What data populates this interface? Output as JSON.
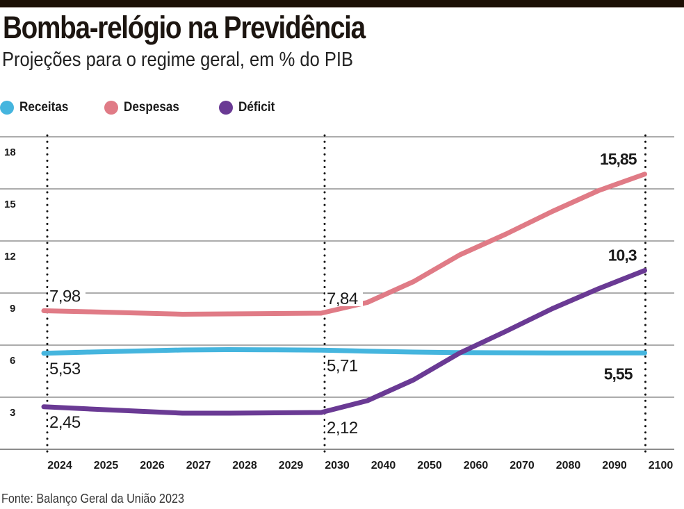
{
  "header": {
    "title": "Bomba-relógio na Previdência",
    "subtitle": "Projeções para o regime geral, em % do PIB"
  },
  "legend": [
    {
      "label": "Receitas",
      "color": "#45b5de"
    },
    {
      "label": "Despesas",
      "color": "#e07b86"
    },
    {
      "label": "Déficit",
      "color": "#6a3a94"
    }
  ],
  "source": "Fonte: Balanço Geral da União 2023",
  "chart_data": {
    "type": "line",
    "title": "Bomba-relógio na Previdência",
    "subtitle": "Projeções para o regime geral, em % do PIB",
    "xlabel": "",
    "ylabel": "% do PIB",
    "categories": [
      "2024",
      "2025",
      "2026",
      "2027",
      "2028",
      "2029",
      "2030",
      "2040",
      "2050",
      "2060",
      "2070",
      "2080",
      "2090",
      "2100"
    ],
    "ylim": [
      0,
      18
    ],
    "yticks": [
      "3",
      "6",
      "9",
      "12",
      "15",
      "18"
    ],
    "ytick_values": [
      3,
      6,
      9,
      12,
      15,
      18
    ],
    "grid": true,
    "legend_position": "top-left",
    "highlight_categories": [
      "2024",
      "2030",
      "2100"
    ],
    "series": [
      {
        "name": "Receitas",
        "color": "#45b5de",
        "values": [
          5.53,
          5.6,
          5.66,
          5.72,
          5.74,
          5.73,
          5.71,
          5.65,
          5.6,
          5.57,
          5.56,
          5.55,
          5.55,
          5.55
        ]
      },
      {
        "name": "Despesas",
        "color": "#e07b86",
        "values": [
          7.98,
          7.92,
          7.85,
          7.78,
          7.8,
          7.82,
          7.84,
          8.46,
          9.66,
          11.2,
          12.4,
          13.7,
          14.9,
          15.85
        ]
      },
      {
        "name": "Déficit",
        "color": "#6a3a94",
        "values": [
          2.45,
          2.32,
          2.2,
          2.08,
          2.08,
          2.1,
          2.12,
          2.8,
          4.0,
          5.55,
          6.8,
          8.1,
          9.25,
          10.3
        ]
      }
    ],
    "annotations": [
      {
        "series": "Despesas",
        "category": "2024",
        "text": "7,98",
        "bold": false,
        "placement": "above"
      },
      {
        "series": "Despesas",
        "category": "2030",
        "text": "7,84",
        "bold": false,
        "placement": "above"
      },
      {
        "series": "Despesas",
        "category": "2100",
        "text": "15,85",
        "bold": true,
        "placement": "above-left"
      },
      {
        "series": "Receitas",
        "category": "2024",
        "text": "5,53",
        "bold": false,
        "placement": "below"
      },
      {
        "series": "Receitas",
        "category": "2030",
        "text": "5,71",
        "bold": false,
        "placement": "below"
      },
      {
        "series": "Receitas",
        "category": "2100",
        "text": "5,55",
        "bold": true,
        "placement": "below-left"
      },
      {
        "series": "Déficit",
        "category": "2024",
        "text": "2,45",
        "bold": false,
        "placement": "below"
      },
      {
        "series": "Déficit",
        "category": "2030",
        "text": "2,12",
        "bold": false,
        "placement": "below"
      },
      {
        "series": "Déficit",
        "category": "2100",
        "text": "10,3",
        "bold": true,
        "placement": "above-left"
      }
    ]
  }
}
